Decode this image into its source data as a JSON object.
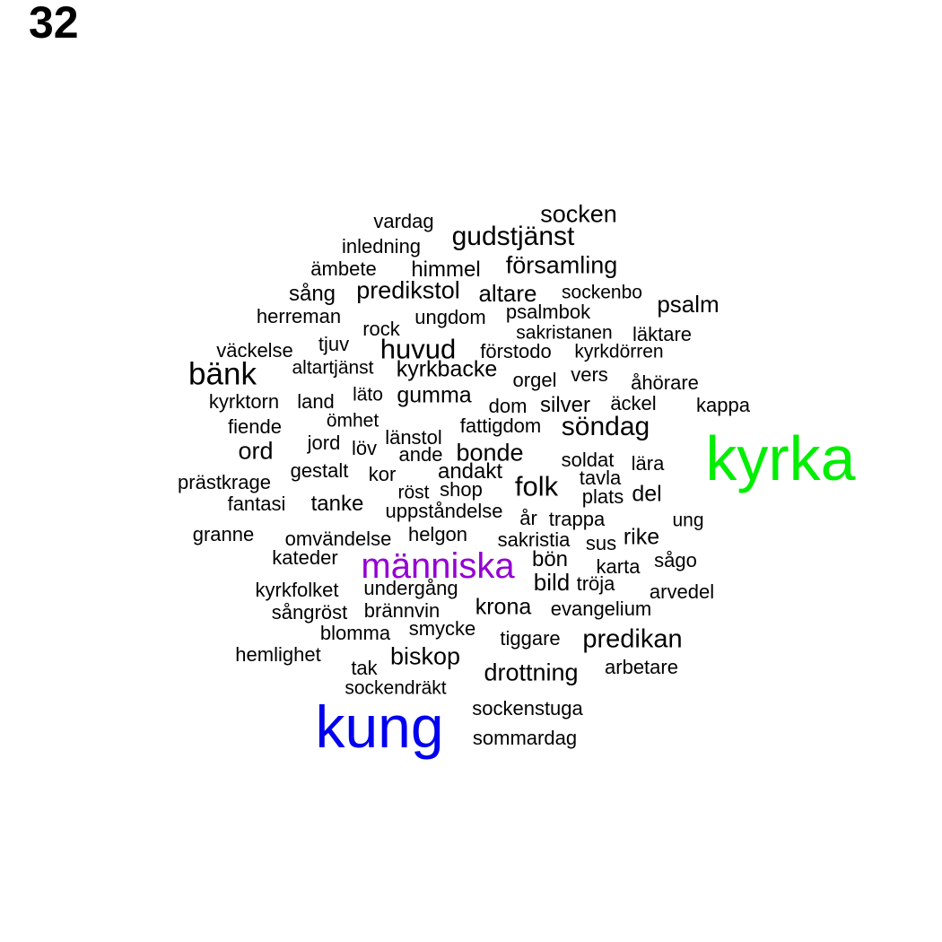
{
  "page_number": "32",
  "colors": {
    "default_word": "#000000",
    "kyrka": "#00ee00",
    "kung": "#0000ee",
    "manniska": "#9400d3"
  },
  "words": [
    {
      "text": "vardag",
      "color": "default_word"
    },
    {
      "text": "socken",
      "color": "default_word"
    },
    {
      "text": "gudstjänst",
      "color": "default_word"
    },
    {
      "text": "inledning",
      "color": "default_word"
    },
    {
      "text": "församling",
      "color": "default_word"
    },
    {
      "text": "ämbete",
      "color": "default_word"
    },
    {
      "text": "himmel",
      "color": "default_word"
    },
    {
      "text": "sång",
      "color": "default_word"
    },
    {
      "text": "predikstol",
      "color": "default_word"
    },
    {
      "text": "altare",
      "color": "default_word"
    },
    {
      "text": "sockenbo",
      "color": "default_word"
    },
    {
      "text": "psalm",
      "color": "default_word"
    },
    {
      "text": "herreman",
      "color": "default_word"
    },
    {
      "text": "ungdom",
      "color": "default_word"
    },
    {
      "text": "psalmbok",
      "color": "default_word"
    },
    {
      "text": "rock",
      "color": "default_word"
    },
    {
      "text": "sakristanen",
      "color": "default_word"
    },
    {
      "text": "läktare",
      "color": "default_word"
    },
    {
      "text": "tjuv",
      "color": "default_word"
    },
    {
      "text": "huvud",
      "color": "default_word"
    },
    {
      "text": "väckelse",
      "color": "default_word"
    },
    {
      "text": "förstodo",
      "color": "default_word"
    },
    {
      "text": "kyrkdörren",
      "color": "default_word"
    },
    {
      "text": "bänk",
      "color": "default_word"
    },
    {
      "text": "altartjänst",
      "color": "default_word"
    },
    {
      "text": "kyrkbacke",
      "color": "default_word"
    },
    {
      "text": "vers",
      "color": "default_word"
    },
    {
      "text": "orgel",
      "color": "default_word"
    },
    {
      "text": "åhörare",
      "color": "default_word"
    },
    {
      "text": "läto",
      "color": "default_word"
    },
    {
      "text": "gumma",
      "color": "default_word"
    },
    {
      "text": "kyrktorn",
      "color": "default_word"
    },
    {
      "text": "land",
      "color": "default_word"
    },
    {
      "text": "dom",
      "color": "default_word"
    },
    {
      "text": "silver",
      "color": "default_word"
    },
    {
      "text": "äckel",
      "color": "default_word"
    },
    {
      "text": "kappa",
      "color": "default_word"
    },
    {
      "text": "ömhet",
      "color": "default_word"
    },
    {
      "text": "fiende",
      "color": "default_word"
    },
    {
      "text": "fattigdom",
      "color": "default_word"
    },
    {
      "text": "söndag",
      "color": "default_word"
    },
    {
      "text": "länstol",
      "color": "default_word"
    },
    {
      "text": "kyrka",
      "color": "kyrka"
    },
    {
      "text": "jord",
      "color": "default_word"
    },
    {
      "text": "ord",
      "color": "default_word"
    },
    {
      "text": "löv",
      "color": "default_word"
    },
    {
      "text": "ande",
      "color": "default_word"
    },
    {
      "text": "bonde",
      "color": "default_word"
    },
    {
      "text": "soldat",
      "color": "default_word"
    },
    {
      "text": "lära",
      "color": "default_word"
    },
    {
      "text": "gestalt",
      "color": "default_word"
    },
    {
      "text": "kor",
      "color": "default_word"
    },
    {
      "text": "andakt",
      "color": "default_word"
    },
    {
      "text": "tavla",
      "color": "default_word"
    },
    {
      "text": "prästkrage",
      "color": "default_word"
    },
    {
      "text": "folk",
      "color": "default_word"
    },
    {
      "text": "röst",
      "color": "default_word"
    },
    {
      "text": "shop",
      "color": "default_word"
    },
    {
      "text": "plats",
      "color": "default_word"
    },
    {
      "text": "del",
      "color": "default_word"
    },
    {
      "text": "fantasi",
      "color": "default_word"
    },
    {
      "text": "tanke",
      "color": "default_word"
    },
    {
      "text": "uppståndelse",
      "color": "default_word"
    },
    {
      "text": "år",
      "color": "default_word"
    },
    {
      "text": "trappa",
      "color": "default_word"
    },
    {
      "text": "ung",
      "color": "default_word"
    },
    {
      "text": "granne",
      "color": "default_word"
    },
    {
      "text": "omvändelse",
      "color": "default_word"
    },
    {
      "text": "helgon",
      "color": "default_word"
    },
    {
      "text": "sakristia",
      "color": "default_word"
    },
    {
      "text": "sus",
      "color": "default_word"
    },
    {
      "text": "rike",
      "color": "default_word"
    },
    {
      "text": "kateder",
      "color": "default_word"
    },
    {
      "text": "människa",
      "color": "manniska"
    },
    {
      "text": "bön",
      "color": "default_word"
    },
    {
      "text": "karta",
      "color": "default_word"
    },
    {
      "text": "sågo",
      "color": "default_word"
    },
    {
      "text": "bild",
      "color": "default_word"
    },
    {
      "text": "tröja",
      "color": "default_word"
    },
    {
      "text": "kyrkfolket",
      "color": "default_word"
    },
    {
      "text": "undergång",
      "color": "default_word"
    },
    {
      "text": "arvedel",
      "color": "default_word"
    },
    {
      "text": "sångröst",
      "color": "default_word"
    },
    {
      "text": "brännvin",
      "color": "default_word"
    },
    {
      "text": "krona",
      "color": "default_word"
    },
    {
      "text": "evangelium",
      "color": "default_word"
    },
    {
      "text": "smycke",
      "color": "default_word"
    },
    {
      "text": "blomma",
      "color": "default_word"
    },
    {
      "text": "tiggare",
      "color": "default_word"
    },
    {
      "text": "predikan",
      "color": "default_word"
    },
    {
      "text": "hemlighet",
      "color": "default_word"
    },
    {
      "text": "biskop",
      "color": "default_word"
    },
    {
      "text": "tak",
      "color": "default_word"
    },
    {
      "text": "drottning",
      "color": "default_word"
    },
    {
      "text": "arbetare",
      "color": "default_word"
    },
    {
      "text": "sockendräkt",
      "color": "default_word"
    },
    {
      "text": "kung",
      "color": "kung"
    },
    {
      "text": "sockenstuga",
      "color": "default_word"
    },
    {
      "text": "sommardag",
      "color": "default_word"
    }
  ]
}
